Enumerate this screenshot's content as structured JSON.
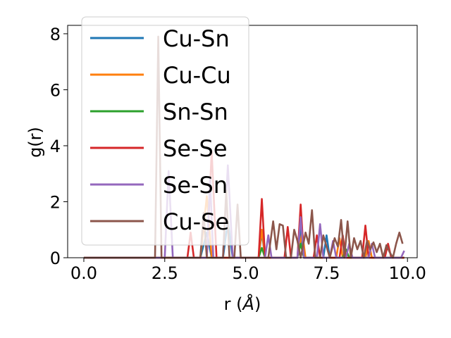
{
  "chart_data": {
    "type": "line",
    "xlabel_main": "r (",
    "xlabel_unit": "Å",
    "xlabel_end": ")",
    "ylabel": "g(r)",
    "xlim": [
      -0.5,
      10.3
    ],
    "ylim": [
      0,
      8.3
    ],
    "xticks": [
      0.0,
      2.5,
      5.0,
      7.5,
      10.0
    ],
    "xtick_labels": [
      "0.0",
      "2.5",
      "5.0",
      "7.5",
      "10.0"
    ],
    "yticks": [
      0,
      2,
      4,
      6,
      8
    ],
    "ytick_labels": [
      "0",
      "2",
      "4",
      "6",
      "8"
    ],
    "grid": false,
    "legend_position": "upper-left",
    "series": [
      {
        "name": "Cu-Sn",
        "color": "#1f77b4",
        "points": [
          [
            0,
            0
          ],
          [
            3.6,
            0
          ],
          [
            3.8,
            0.9
          ],
          [
            3.95,
            0
          ],
          [
            4.3,
            0
          ],
          [
            4.45,
            1.3
          ],
          [
            4.6,
            0
          ],
          [
            5.4,
            0
          ],
          [
            5.5,
            0.9
          ],
          [
            5.6,
            0
          ],
          [
            6.6,
            0
          ],
          [
            6.7,
            1.0
          ],
          [
            6.8,
            0
          ],
          [
            7.4,
            0
          ],
          [
            7.5,
            0.8
          ],
          [
            7.6,
            0
          ],
          [
            8.7,
            0
          ],
          [
            8.8,
            0.5
          ],
          [
            8.9,
            0
          ],
          [
            9.9,
            0
          ]
        ]
      },
      {
        "name": "Cu-Cu",
        "color": "#ff7f0e",
        "points": [
          [
            0,
            0
          ],
          [
            3.6,
            0
          ],
          [
            3.8,
            2.2
          ],
          [
            3.95,
            0
          ],
          [
            5.4,
            0
          ],
          [
            5.5,
            1.0
          ],
          [
            5.6,
            0
          ],
          [
            6.6,
            0
          ],
          [
            6.75,
            0.9
          ],
          [
            6.85,
            0
          ],
          [
            7.8,
            0
          ],
          [
            7.9,
            0.7
          ],
          [
            8.0,
            0
          ],
          [
            8.7,
            0
          ],
          [
            8.8,
            0.6
          ],
          [
            8.9,
            0
          ],
          [
            9.9,
            0
          ]
        ]
      },
      {
        "name": "Sn-Sn",
        "color": "#2ca02c",
        "points": [
          [
            0,
            0
          ],
          [
            5.4,
            0
          ],
          [
            5.5,
            0.35
          ],
          [
            5.6,
            0
          ],
          [
            6.6,
            0
          ],
          [
            6.7,
            0.5
          ],
          [
            6.8,
            0
          ],
          [
            8.0,
            0
          ],
          [
            8.1,
            0.3
          ],
          [
            8.2,
            0
          ],
          [
            9.9,
            0
          ]
        ]
      },
      {
        "name": "Se-Se",
        "color": "#d62728",
        "points": [
          [
            0,
            0
          ],
          [
            3.2,
            0
          ],
          [
            3.3,
            0.9
          ],
          [
            3.4,
            0
          ],
          [
            3.8,
            0
          ],
          [
            3.95,
            3.8
          ],
          [
            4.1,
            0
          ],
          [
            5.4,
            0
          ],
          [
            5.5,
            2.1
          ],
          [
            5.6,
            0
          ],
          [
            6.2,
            0
          ],
          [
            6.3,
            1.1
          ],
          [
            6.4,
            0
          ],
          [
            6.6,
            0
          ],
          [
            6.7,
            1.9
          ],
          [
            6.8,
            0
          ],
          [
            7.1,
            0
          ],
          [
            7.2,
            0.8
          ],
          [
            7.3,
            0
          ],
          [
            7.9,
            0
          ],
          [
            8.0,
            0.8
          ],
          [
            8.1,
            0
          ],
          [
            8.6,
            0
          ],
          [
            8.7,
            1.15
          ],
          [
            8.8,
            0
          ],
          [
            9.3,
            0
          ],
          [
            9.4,
            0.5
          ],
          [
            9.5,
            0
          ],
          [
            9.9,
            0
          ]
        ]
      },
      {
        "name": "Se-Sn",
        "color": "#9467bd",
        "points": [
          [
            0,
            0
          ],
          [
            2.5,
            0
          ],
          [
            2.62,
            3.1
          ],
          [
            2.75,
            0
          ],
          [
            3.8,
            0
          ],
          [
            3.9,
            2.8
          ],
          [
            4.0,
            0
          ],
          [
            4.3,
            0
          ],
          [
            4.45,
            3.3
          ],
          [
            4.6,
            0
          ],
          [
            5.6,
            0
          ],
          [
            5.7,
            0.8
          ],
          [
            5.8,
            0
          ],
          [
            6.6,
            0
          ],
          [
            6.7,
            1.45
          ],
          [
            6.8,
            0
          ],
          [
            7.2,
            0
          ],
          [
            7.3,
            1.2
          ],
          [
            7.4,
            0
          ],
          [
            7.6,
            0
          ],
          [
            7.7,
            0.6
          ],
          [
            7.8,
            0
          ],
          [
            8.1,
            0
          ],
          [
            8.2,
            0.5
          ],
          [
            8.3,
            0
          ],
          [
            8.8,
            0
          ],
          [
            8.9,
            0.5
          ],
          [
            9.0,
            0
          ],
          [
            9.8,
            0
          ],
          [
            9.9,
            0.25
          ]
        ]
      },
      {
        "name": "Cu-Se",
        "color": "#8c564b",
        "points": [
          [
            0,
            0
          ],
          [
            2.2,
            0
          ],
          [
            2.3,
            7.9
          ],
          [
            2.4,
            0
          ],
          [
            3.6,
            0
          ],
          [
            3.7,
            1.6
          ],
          [
            3.8,
            0
          ],
          [
            4.3,
            0
          ],
          [
            4.4,
            2.4
          ],
          [
            4.5,
            0
          ],
          [
            4.65,
            0
          ],
          [
            4.75,
            1.9
          ],
          [
            4.85,
            0
          ],
          [
            5.7,
            0
          ],
          [
            5.85,
            1.3
          ],
          [
            5.95,
            0.3
          ],
          [
            6.05,
            1.2
          ],
          [
            6.15,
            1.15
          ],
          [
            6.25,
            0
          ],
          [
            6.4,
            0
          ],
          [
            6.5,
            1.0
          ],
          [
            6.6,
            0.6
          ],
          [
            6.7,
            0
          ],
          [
            6.85,
            0.9
          ],
          [
            6.95,
            0.5
          ],
          [
            7.05,
            1.7
          ],
          [
            7.15,
            0
          ],
          [
            7.3,
            0
          ],
          [
            7.4,
            0.8
          ],
          [
            7.5,
            0.4
          ],
          [
            7.6,
            0
          ],
          [
            7.75,
            0.7
          ],
          [
            7.85,
            0.4
          ],
          [
            7.95,
            1.35
          ],
          [
            8.05,
            0
          ],
          [
            8.15,
            1.3
          ],
          [
            8.25,
            0
          ],
          [
            8.35,
            0.7
          ],
          [
            8.45,
            0.3
          ],
          [
            8.55,
            0.6
          ],
          [
            8.65,
            0
          ],
          [
            8.75,
            0.6
          ],
          [
            8.85,
            0.3
          ],
          [
            8.95,
            0.55
          ],
          [
            9.05,
            0.2
          ],
          [
            9.15,
            0.5
          ],
          [
            9.25,
            0
          ],
          [
            9.35,
            0.45
          ],
          [
            9.45,
            0.2
          ],
          [
            9.55,
            0
          ],
          [
            9.65,
            0.5
          ],
          [
            9.75,
            0.9
          ],
          [
            9.85,
            0.5
          ]
        ]
      }
    ]
  }
}
